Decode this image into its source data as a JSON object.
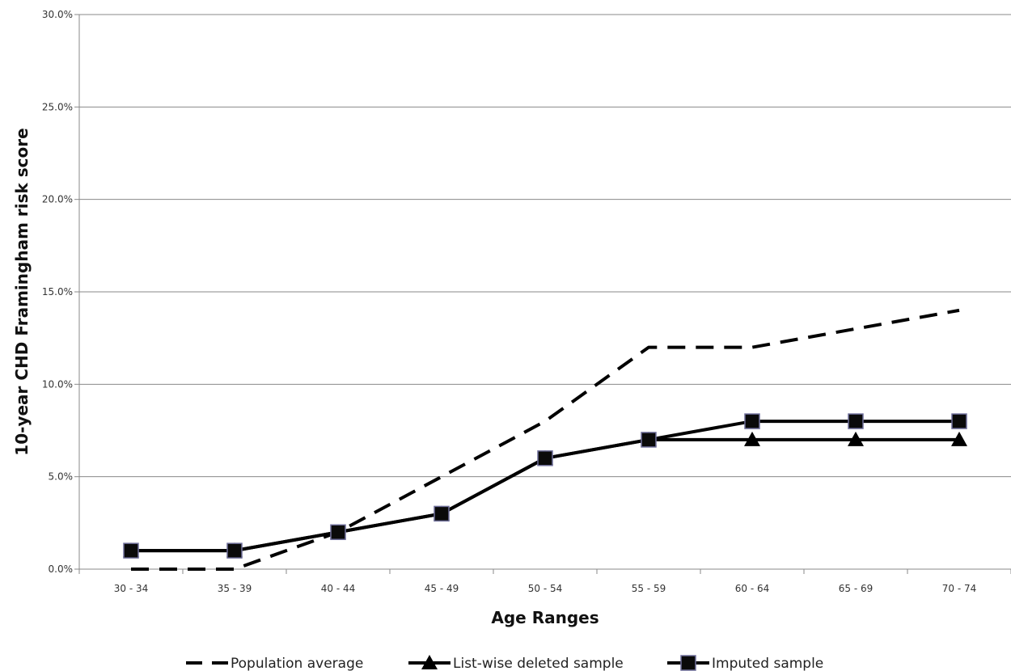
{
  "chart_data": {
    "type": "line",
    "title": "",
    "xlabel": "Age Ranges",
    "ylabel": "10-year CHD Framingham risk score",
    "categories": [
      "30 - 34",
      "35 - 39",
      "40 - 44",
      "45 - 49",
      "50 - 54",
      "55 - 59",
      "60 - 64",
      "65 - 69",
      "70 - 74"
    ],
    "y_ticks": [
      "0.0%",
      "5.0%",
      "10.0%",
      "15.0%",
      "20.0%",
      "25.0%",
      "30.0%"
    ],
    "ylim": [
      0,
      30
    ],
    "y_unit": "%",
    "grid": "horizontal",
    "legend_position": "bottom",
    "series": [
      {
        "name": "Population average",
        "style": "dashed",
        "marker": "none",
        "color": "#000000",
        "values": [
          0,
          0,
          2,
          5,
          8,
          12,
          12,
          13,
          14
        ]
      },
      {
        "name": "List-wise deleted sample",
        "style": "solid",
        "marker": "triangle",
        "color": "#000000",
        "values": [
          1,
          1,
          2,
          3,
          6,
          7,
          7,
          7,
          7
        ]
      },
      {
        "name": "Imputed sample",
        "style": "solid",
        "marker": "square",
        "color": "#000000",
        "values": [
          1,
          1,
          2,
          3,
          6,
          7,
          8,
          8,
          8
        ]
      }
    ]
  }
}
